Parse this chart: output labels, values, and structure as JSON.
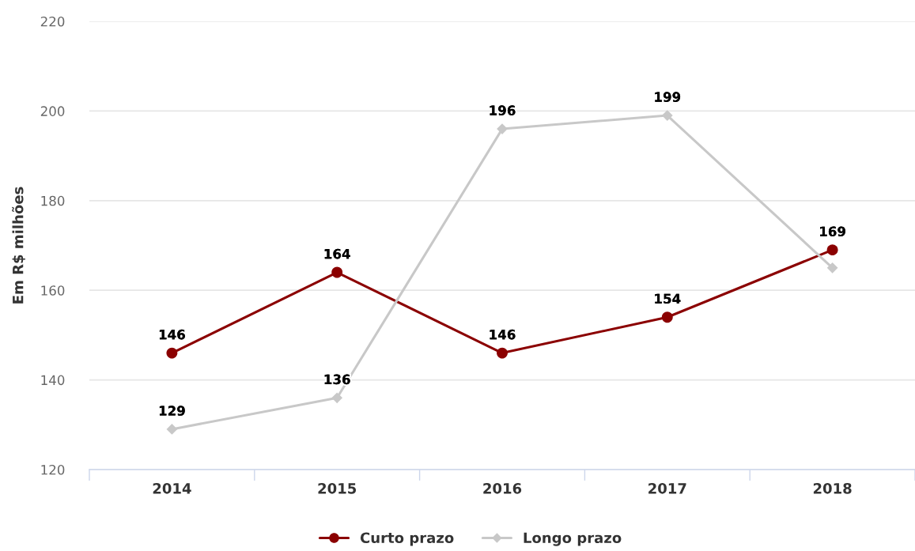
{
  "chart_data": {
    "type": "line",
    "ylabel": "Em R$ milhões",
    "categories": [
      "2014",
      "2015",
      "2016",
      "2017",
      "2018"
    ],
    "series": [
      {
        "name": "Curto prazo",
        "color": "#8b0000",
        "marker": "circle",
        "values": [
          146,
          164,
          146,
          154,
          169
        ],
        "value_labels": [
          "146",
          "164",
          "146",
          "154",
          "169"
        ]
      },
      {
        "name": "Longo prazo",
        "color": "#c8c8c8",
        "marker": "diamond",
        "values": [
          129,
          136,
          196,
          199,
          165
        ],
        "value_labels": [
          "129",
          "136",
          "196",
          "199",
          null
        ]
      }
    ],
    "ylim": [
      120,
      220
    ],
    "yticks": [
      120,
      140,
      160,
      180,
      200,
      220
    ],
    "grid": "y",
    "legend": "bottom",
    "line_style": "solid"
  }
}
